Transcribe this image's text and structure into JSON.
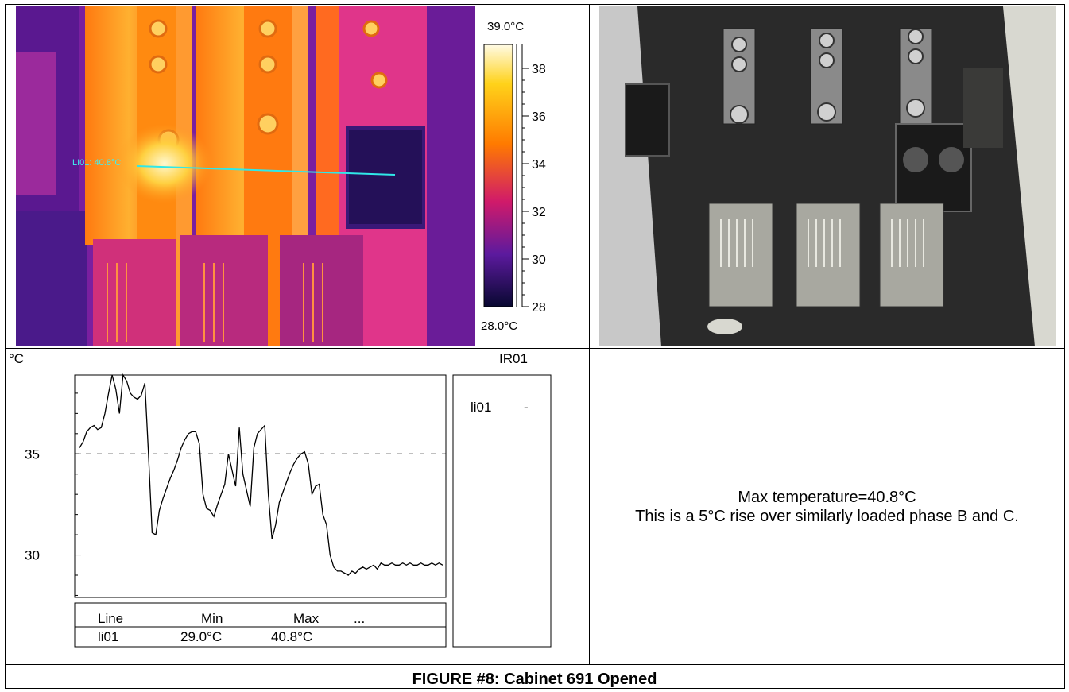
{
  "thermal_image": {
    "scale_max_label": "39.0°C",
    "scale_min_label": "28.0°C",
    "scale_ticks": [
      "38",
      "36",
      "34",
      "32",
      "30",
      "28"
    ],
    "line_tool_label": "LI01: 40.8°C",
    "colors": {
      "hot": "#fff6c0",
      "mid": "#ff7a00",
      "warm": "#d01a6a",
      "cool": "#5c1a9e",
      "cold": "#080830",
      "line_tool": "#30e8e8"
    }
  },
  "photo": {
    "description_icon": "switchgear-photo-icon"
  },
  "profile_chart": {
    "unit_label": "°C",
    "image_id": "IR01",
    "legend_entry": "li01",
    "legend_value": "-",
    "table_headers": [
      "Line",
      "Min",
      "Max",
      "..."
    ],
    "table_row": [
      "li01",
      "29.0°C",
      "40.8°C",
      ""
    ]
  },
  "chart_data": {
    "type": "line",
    "ylabel": "°C",
    "ylim": [
      27.9,
      38.9
    ],
    "ytick_labels": [
      "35",
      "30"
    ],
    "grid": "dashed at 30 and 35",
    "series": [
      {
        "name": "li01",
        "x": [
          0,
          1,
          2,
          3,
          4,
          5,
          6,
          7,
          8,
          9,
          10,
          11,
          12,
          13,
          14,
          15,
          16,
          17,
          18,
          19,
          20,
          21,
          22,
          23,
          24,
          25,
          26,
          27,
          28,
          29,
          30,
          31,
          32,
          33,
          34,
          35,
          36,
          37,
          38,
          39,
          40,
          41,
          42,
          43,
          44,
          45,
          46,
          47,
          48,
          49,
          50,
          51,
          52,
          53,
          54,
          55,
          56,
          57,
          58,
          59,
          60,
          61,
          62,
          63,
          64,
          65,
          66,
          67,
          68,
          69,
          70,
          71,
          72,
          73,
          74,
          75,
          76,
          77,
          78,
          79,
          80,
          81,
          82,
          83,
          84,
          85,
          86,
          87,
          88,
          89,
          90,
          91,
          92,
          93,
          94,
          95,
          96,
          97,
          98,
          99,
          100
        ],
        "values": [
          35.3,
          35.6,
          36.1,
          36.3,
          36.4,
          36.2,
          36.3,
          37.0,
          38.0,
          38.9,
          38.2,
          37.0,
          38.9,
          38.6,
          38.0,
          37.8,
          37.7,
          37.9,
          38.5,
          35.0,
          31.1,
          31.0,
          32.2,
          32.8,
          33.3,
          33.8,
          34.2,
          34.7,
          35.3,
          35.7,
          36.0,
          36.1,
          36.1,
          35.5,
          33.0,
          32.3,
          32.2,
          31.9,
          32.5,
          33.0,
          33.5,
          35.0,
          34.2,
          33.4,
          36.3,
          34.0,
          33.2,
          32.4,
          35.3,
          36.0,
          36.2,
          36.4,
          33.0,
          30.8,
          31.5,
          32.6,
          33.1,
          33.6,
          34.1,
          34.5,
          34.8,
          35.0,
          35.1,
          34.5,
          33.0,
          33.4,
          33.5,
          32.0,
          31.5,
          30.0,
          29.4,
          29.2,
          29.2,
          29.1,
          29.0,
          29.2,
          29.1,
          29.3,
          29.4,
          29.3,
          29.4,
          29.5,
          29.3,
          29.6,
          29.5,
          29.5,
          29.6,
          29.5,
          29.5,
          29.6,
          29.5,
          29.6,
          29.5,
          29.5,
          29.6,
          29.5,
          29.5,
          29.6,
          29.5,
          29.6,
          29.5
        ]
      }
    ]
  },
  "summary": {
    "line1": "Max temperature=40.8°C",
    "line2": "This is a 5°C rise over similarly loaded phase B and C."
  },
  "caption": "FIGURE #8: Cabinet 691 Opened"
}
